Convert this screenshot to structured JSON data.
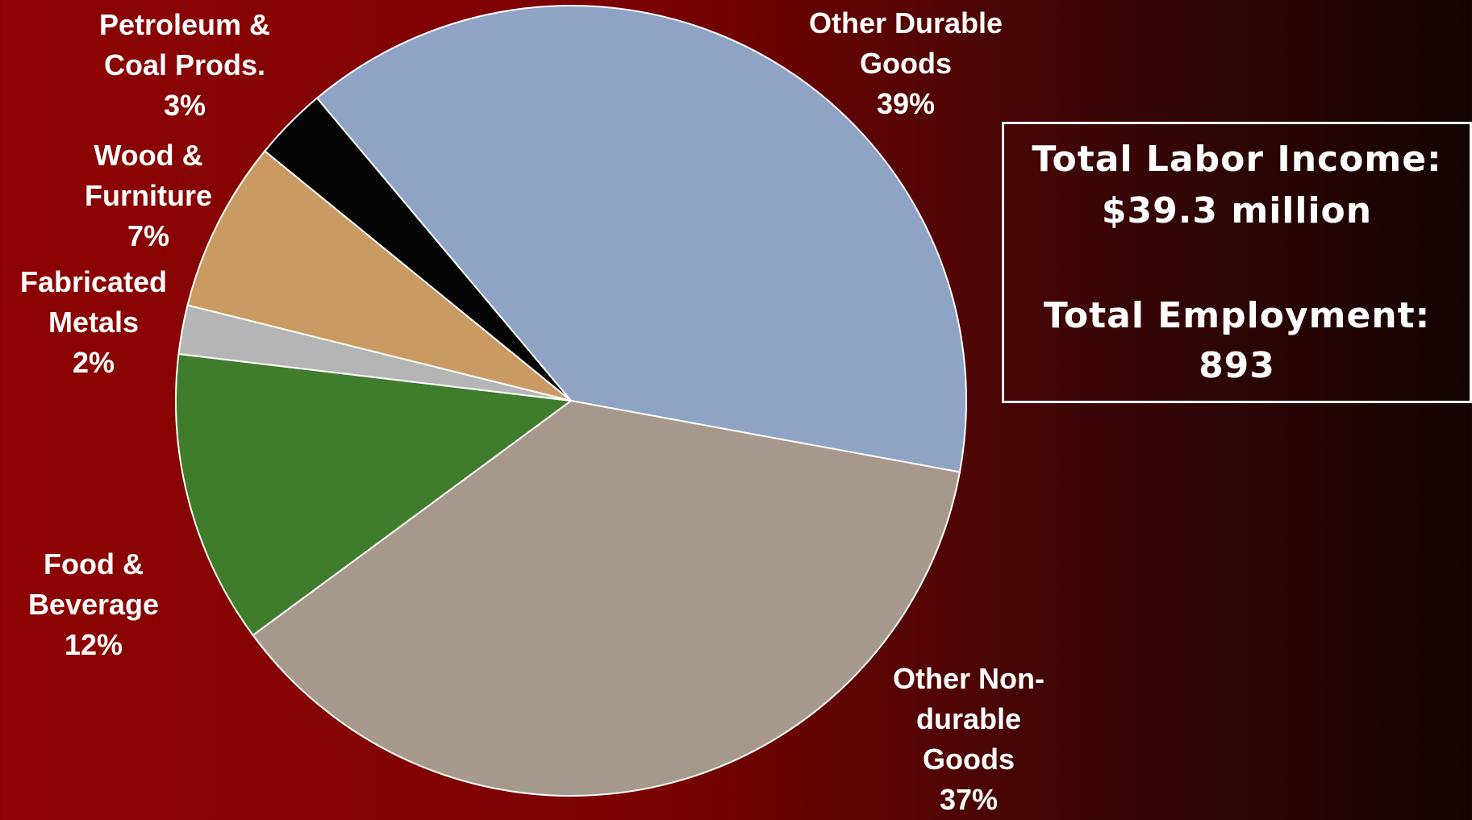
{
  "chart_data": {
    "type": "pie",
    "categories": [
      "Other Durable Goods",
      "Other Non-durable Goods",
      "Food & Beverage",
      "Fabricated Metals",
      "Wood & Furniture",
      "Petroleum & Coal Prods."
    ],
    "values": [
      39,
      37,
      12,
      2,
      7,
      3
    ],
    "value_labels": [
      "39%",
      "37%",
      "12%",
      "2%",
      "7%",
      "3%"
    ],
    "colors": [
      "#8fa3c4",
      "#a6998c",
      "#3f7d2c",
      "#b5b5b5",
      "#c99a62",
      "#050505"
    ],
    "annotations": [
      "Total Labor Income:",
      "$39.3 million",
      "Total Employment:",
      "893"
    ]
  }
}
